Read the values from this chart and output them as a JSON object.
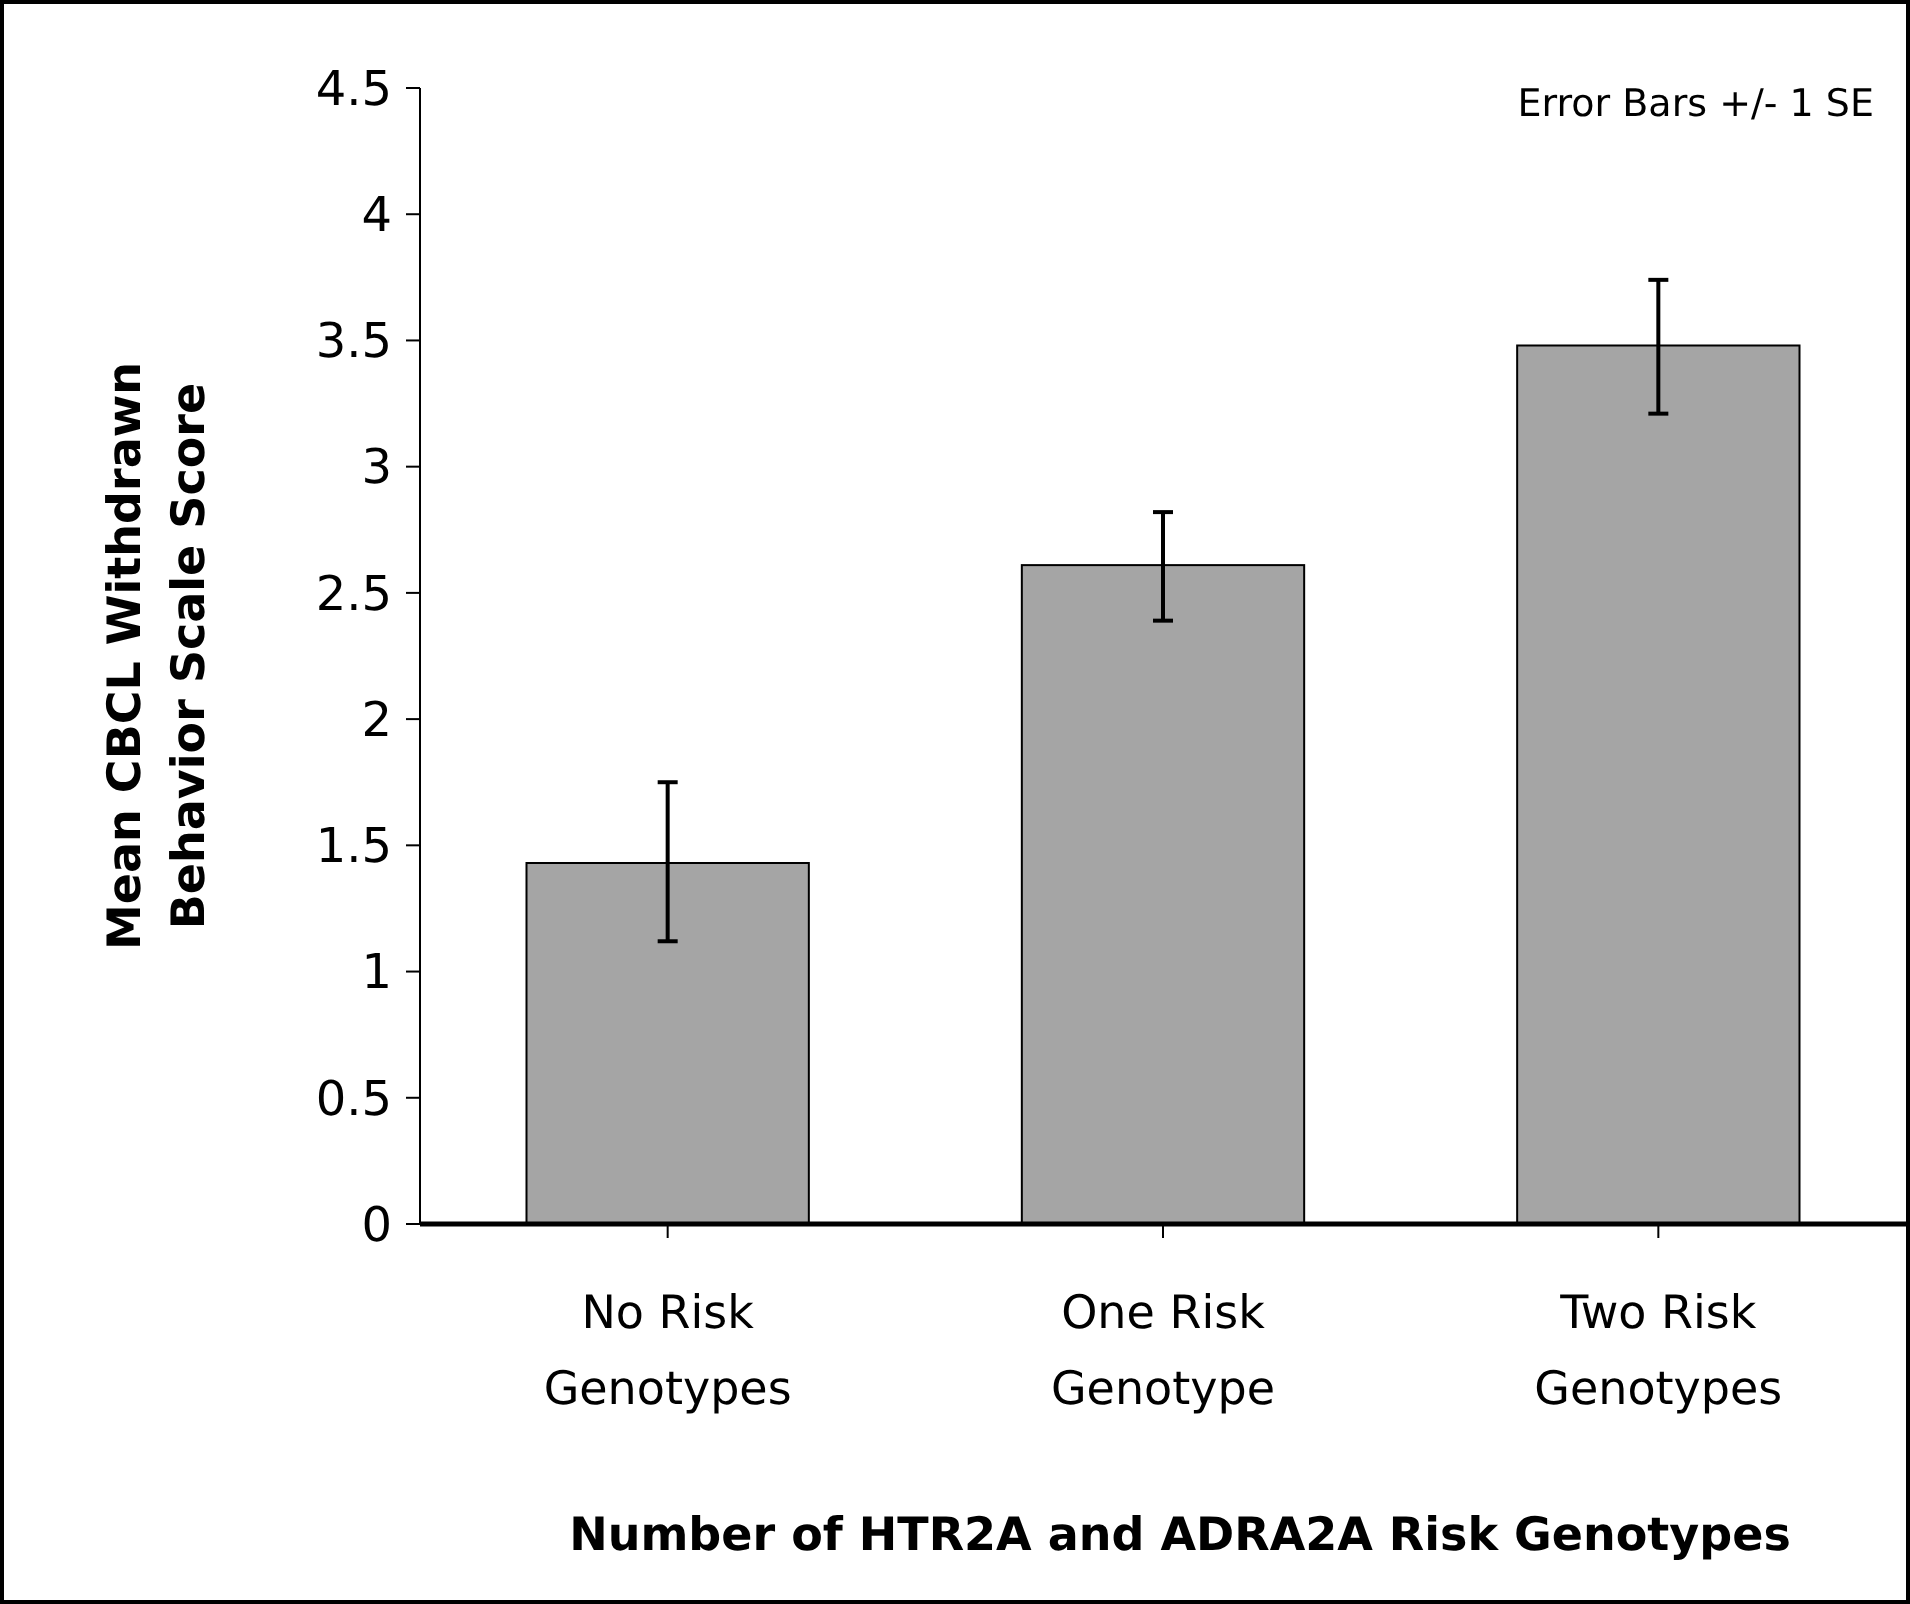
{
  "chart_data": {
    "type": "bar",
    "xlabel": "Number of HTR2A and ADRA2A Risk Genotypes",
    "ylabel": "Mean CBCL Withdrawn Behavior Scale Score",
    "categories": [
      "No Risk Genotypes",
      "One Risk Genotype",
      "Two Risk Genotypes"
    ],
    "values": [
      1.43,
      2.61,
      3.48
    ],
    "errors": [
      [
        1.12,
        1.75
      ],
      [
        2.39,
        2.82
      ],
      [
        3.21,
        3.74
      ]
    ],
    "color": "#a5a5a5",
    "ylim": [
      0,
      4.5
    ],
    "yticks": [
      0,
      0.5,
      1,
      1.5,
      2,
      2.5,
      3,
      3.5,
      4,
      4.5
    ],
    "annotations": [
      "Error Bars +/- 1 SE"
    ]
  }
}
